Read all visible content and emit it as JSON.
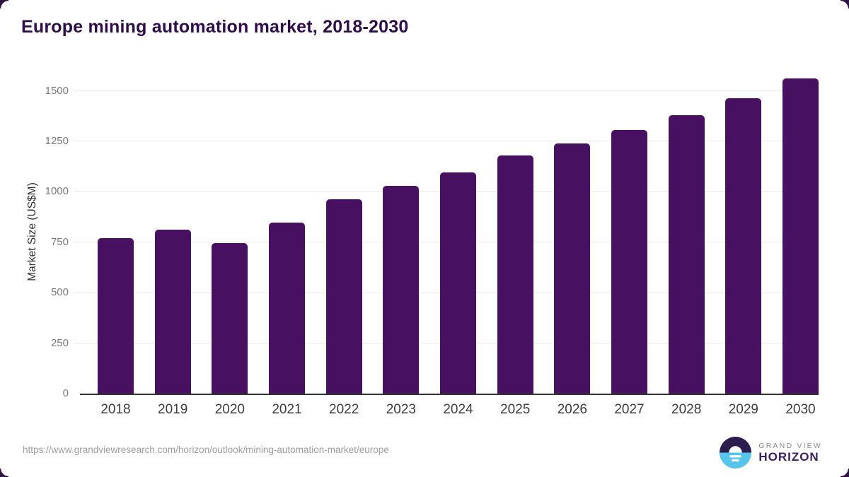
{
  "page": {
    "title": "Europe mining automation market, 2018-2030"
  },
  "chart_data": {
    "type": "bar",
    "title": "Europe mining automation market, 2018-2030",
    "categories": [
      "2018",
      "2019",
      "2020",
      "2021",
      "2022",
      "2023",
      "2024",
      "2025",
      "2026",
      "2027",
      "2028",
      "2029",
      "2030"
    ],
    "values": [
      770,
      812,
      745,
      847,
      963,
      1028,
      1097,
      1180,
      1240,
      1305,
      1378,
      1462,
      1562
    ],
    "xlabel": "",
    "ylabel": "Market Size (US$M)",
    "ylim": [
      0,
      1600
    ],
    "yticks": [
      0,
      250,
      500,
      750,
      1000,
      1250,
      1500
    ],
    "grid": "horizontal",
    "legend": "none",
    "colors": {
      "bar": "#471060",
      "gridline": "#e9e9ea",
      "axis_line": "#333333",
      "y_tick_label": "#7a7a7a",
      "x_tick_label": "#3d3d3d",
      "title": "#2e0d49"
    }
  },
  "footer": {
    "source_url": "https://www.grandviewresearch.com/horizon/outlook/mining-automation-market/europe",
    "logo": {
      "line1": "GRAND VIEW",
      "line2": "HORIZON",
      "icon": "grand-view-horizon-sun-icon",
      "icon_colors": {
        "top_half": "#2b1e4e",
        "bottom_half": "#56c5ea",
        "sun": "#ffffff"
      }
    }
  }
}
